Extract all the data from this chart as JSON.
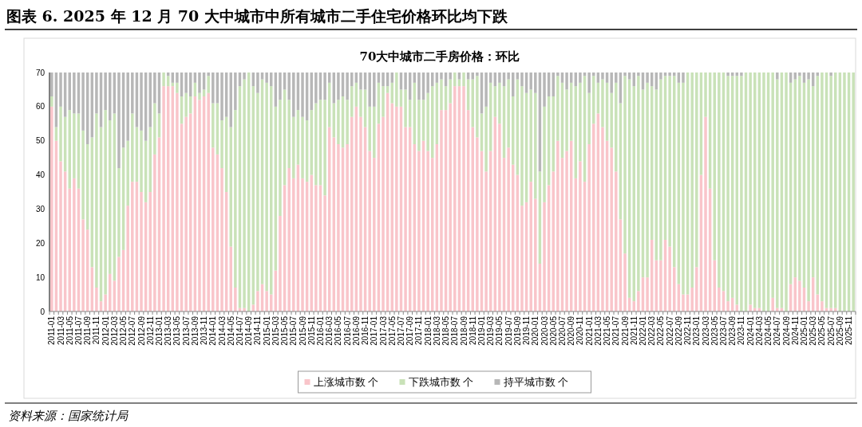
{
  "chart_data": {
    "type": "bar",
    "title": "图表 6. 2025 年 12 月 70 大中城市中所有城市二手住宅价格环比均下跌",
    "subtitle": "70大中城市二手房价格：环比",
    "annotations": [
      "资料来源：国家统计局"
    ],
    "categories": [
      "2011-01",
      null,
      "2011-03",
      null,
      "2011-05",
      null,
      "2011-07",
      null,
      "2011-09",
      null,
      "2011-11",
      null,
      "2012-01",
      null,
      "2012-03",
      null,
      "2012-05",
      null,
      "2012-07",
      null,
      "2012-09",
      null,
      "2012-11",
      null,
      "2013-01",
      null,
      "2013-03",
      null,
      "2013-05",
      null,
      "2013-07",
      null,
      "2013-09",
      null,
      "2013-11",
      null,
      "2014-01",
      null,
      "2014-03",
      null,
      "2014-05",
      null,
      "2014-07",
      null,
      "2014-09",
      null,
      "2014-11",
      null,
      "2015-01",
      null,
      "2015-03",
      null,
      "2015-05",
      null,
      "2015-07",
      null,
      "2015-09",
      null,
      "2015-11",
      null,
      "2016-01",
      null,
      "2016-03",
      null,
      "2016-05",
      null,
      "2016-07",
      null,
      "2016-09",
      null,
      "2016-11",
      null,
      "2017-01",
      null,
      "2017-03",
      null,
      "2017-05",
      null,
      "2017-07",
      null,
      "2017-09",
      null,
      "2017-11",
      null,
      "2018-01",
      null,
      "2018-03",
      null,
      "2018-05",
      null,
      "2018-07",
      null,
      "2018-09",
      null,
      "2018-11",
      null,
      "2019-01",
      null,
      "2019-03",
      null,
      "2019-05",
      null,
      "2019-07",
      null,
      "2019-09",
      null,
      "2019-11",
      null,
      "2020-01",
      null,
      "2020-03",
      null,
      "2020-05",
      null,
      "2020-07",
      null,
      "2020-09",
      null,
      "2020-11",
      null,
      "2021-01",
      null,
      "2021-03",
      null,
      "2021-05",
      null,
      "2021-07",
      null,
      "2021-09",
      null,
      "2021-11",
      null,
      "2022-01",
      null,
      "2022-03",
      null,
      "2022-05",
      null,
      "2022-07",
      null,
      "2022-09",
      null,
      "2022-11",
      null,
      "2023-01",
      null,
      "2023-03",
      null,
      "2023-05",
      null,
      "2023-07",
      null,
      "2023-09",
      null,
      "2023-11",
      null,
      "2024-01",
      null,
      "2024-03",
      null,
      "2024-05",
      null,
      "2024-07",
      null,
      "2024-09",
      null,
      "2024-11",
      null,
      "2025-01",
      null,
      "2025-03",
      null,
      "2025-05",
      null,
      "2025-07",
      null,
      "2025-09",
      null,
      "2025-11",
      null
    ],
    "series": [
      {
        "name": "上涨城市数 个",
        "color": "#f9c5ca",
        "values": [
          60,
          50,
          44,
          41,
          36,
          39,
          36,
          27,
          24,
          13,
          7,
          3,
          5,
          11,
          9,
          16,
          18,
          31,
          38,
          38,
          35,
          32,
          35,
          46,
          51,
          66,
          66,
          66,
          64,
          55,
          57,
          58,
          63,
          62,
          63,
          64,
          48,
          46,
          42,
          35,
          19,
          7,
          1,
          1,
          0,
          2,
          6,
          8,
          6,
          5,
          12,
          28,
          37,
          42,
          39,
          43,
          39,
          38,
          40,
          37,
          37,
          34,
          54,
          51,
          49,
          48,
          49,
          57,
          60,
          57,
          54,
          47,
          45,
          55,
          57,
          64,
          61,
          60,
          60,
          54,
          54,
          49,
          47,
          50,
          47,
          45,
          49,
          59,
          59,
          61,
          66,
          66,
          66,
          59,
          54,
          51,
          47,
          41,
          47,
          57,
          55,
          45,
          48,
          43,
          40,
          31,
          32,
          38,
          33,
          14,
          32,
          37,
          41,
          50,
          45,
          47,
          50,
          39,
          44,
          38,
          49,
          55,
          58,
          54,
          50,
          48,
          41,
          27,
          17,
          4,
          3,
          6,
          10,
          10,
          21,
          15,
          15,
          21,
          19,
          13,
          8,
          5,
          5,
          7,
          13,
          40,
          57,
          36,
          15,
          7,
          6,
          3,
          4,
          2,
          0,
          0,
          2,
          1,
          1,
          0,
          0,
          4,
          1,
          1,
          0,
          8,
          10,
          9,
          7,
          3,
          10,
          5,
          3,
          1,
          1,
          1,
          0,
          0,
          0,
          0
        ]
      },
      {
        "name": "下跌城市数 个",
        "color": "#c9e2b8",
        "values": [
          3,
          4,
          16,
          16,
          23,
          19,
          22,
          26,
          25,
          38,
          51,
          51,
          54,
          45,
          49,
          26,
          30,
          19,
          20,
          16,
          18,
          18,
          19,
          15,
          7,
          4,
          3,
          1,
          3,
          8,
          7,
          5,
          4,
          2,
          2,
          5,
          13,
          15,
          14,
          22,
          35,
          52,
          65,
          67,
          70,
          64,
          58,
          60,
          61,
          61,
          48,
          34,
          28,
          20,
          18,
          16,
          18,
          18,
          19,
          24,
          25,
          28,
          13,
          10,
          13,
          15,
          13,
          9,
          7,
          8,
          11,
          13,
          15,
          12,
          9,
          2,
          6,
          10,
          5,
          11,
          8,
          18,
          15,
          12,
          17,
          21,
          18,
          9,
          7,
          7,
          4,
          2,
          4,
          9,
          14,
          18,
          11,
          19,
          20,
          9,
          12,
          21,
          20,
          20,
          28,
          35,
          32,
          27,
          31,
          27,
          28,
          26,
          22,
          19,
          22,
          18,
          17,
          27,
          23,
          31,
          15,
          14,
          9,
          14,
          17,
          16,
          26,
          34,
          52,
          64,
          63,
          63,
          55,
          57,
          45,
          50,
          53,
          48,
          50,
          56,
          59,
          62,
          65,
          63,
          57,
          30,
          13,
          34,
          55,
          63,
          64,
          66,
          65,
          67,
          69,
          70,
          68,
          69,
          69,
          70,
          70,
          66,
          67,
          69,
          70,
          59,
          58,
          60,
          60,
          65,
          56,
          64,
          67,
          69,
          68,
          69,
          70,
          70,
          70,
          70
        ]
      },
      {
        "name": "持平城市数 个",
        "color": "#b7b7b7",
        "values": [
          7,
          16,
          10,
          13,
          11,
          12,
          12,
          17,
          21,
          19,
          12,
          16,
          11,
          14,
          12,
          28,
          22,
          20,
          12,
          16,
          17,
          20,
          16,
          9,
          12,
          0,
          1,
          3,
          3,
          7,
          6,
          7,
          3,
          6,
          5,
          1,
          9,
          9,
          14,
          13,
          16,
          11,
          4,
          2,
          0,
          4,
          6,
          2,
          3,
          4,
          10,
          8,
          5,
          8,
          13,
          11,
          13,
          14,
          11,
          9,
          8,
          8,
          3,
          9,
          8,
          7,
          8,
          4,
          3,
          5,
          5,
          10,
          10,
          3,
          4,
          4,
          3,
          0,
          5,
          5,
          8,
          3,
          8,
          8,
          6,
          4,
          3,
          2,
          4,
          2,
          0,
          2,
          0,
          2,
          2,
          1,
          12,
          10,
          3,
          4,
          3,
          4,
          2,
          7,
          2,
          4,
          6,
          5,
          6,
          29,
          10,
          7,
          7,
          1,
          3,
          5,
          3,
          4,
          3,
          1,
          6,
          1,
          3,
          2,
          3,
          6,
          3,
          9,
          1,
          2,
          4,
          1,
          5,
          3,
          4,
          5,
          2,
          1,
          1,
          1,
          3,
          3,
          0,
          0,
          0,
          0,
          0,
          0,
          0,
          0,
          0,
          1,
          1,
          1,
          1,
          0,
          0,
          0,
          0,
          0,
          0,
          0,
          2,
          0,
          0,
          3,
          2,
          1,
          3,
          2,
          4,
          1,
          0,
          0,
          1,
          0,
          0,
          0,
          0,
          0
        ]
      }
    ],
    "stacked": true,
    "ylim": [
      0,
      70
    ],
    "yticks": [
      0,
      10,
      20,
      30,
      40,
      50,
      60,
      70
    ],
    "grid": false,
    "legend": "bottom"
  }
}
